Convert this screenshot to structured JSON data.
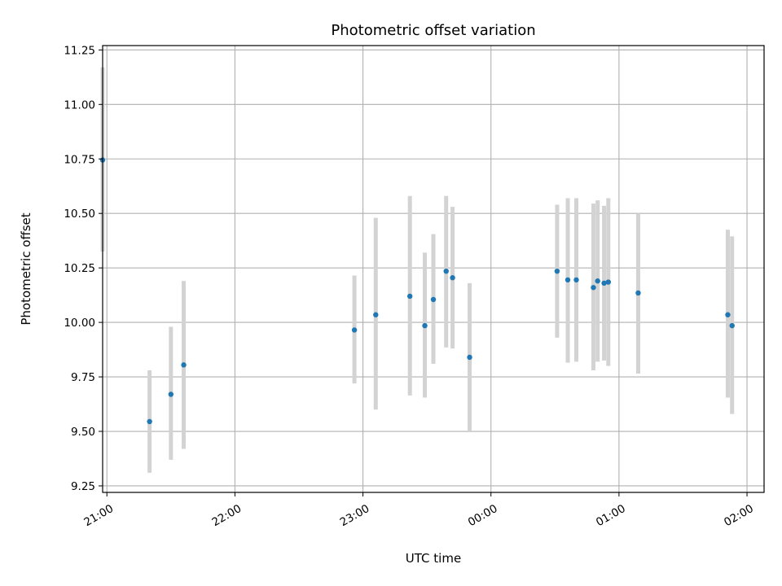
{
  "chart_data": {
    "type": "scatter",
    "title": "Photometric offset variation",
    "xlabel": "UTC time",
    "ylabel": "Photometric offset",
    "x_tick_labels": [
      "21:00",
      "22:00",
      "23:00",
      "00:00",
      "01:00",
      "02:00"
    ],
    "y_tick_labels": [
      "9.25",
      "9.50",
      "9.75",
      "10.00",
      "10.25",
      "10.50",
      "10.75",
      "11.00",
      "11.25"
    ],
    "xlim": [
      "20:58",
      "02:08"
    ],
    "ylim": [
      9.22,
      11.27
    ],
    "grid": true,
    "marker_color": "#1f77b4",
    "errorbar_color": "#d3d3d3",
    "series": [
      {
        "x": [
          "20:58",
          "21:20",
          "21:30",
          "21:36",
          "22:56",
          "23:06",
          "23:22",
          "23:29",
          "23:33",
          "23:39",
          "23:42",
          "23:50",
          "00:31",
          "00:36",
          "00:40",
          "00:48",
          "00:50",
          "00:53",
          "00:55",
          "01:09",
          "01:51",
          "01:53"
        ],
        "y": [
          10.745,
          9.545,
          9.67,
          9.805,
          9.965,
          10.035,
          10.12,
          9.985,
          10.105,
          10.235,
          10.205,
          9.84,
          10.235,
          10.195,
          10.195,
          10.16,
          10.19,
          10.18,
          10.185,
          10.135,
          10.035,
          9.985
        ],
        "y_low": [
          10.325,
          9.31,
          9.37,
          9.42,
          9.72,
          9.6,
          9.665,
          9.655,
          9.81,
          9.885,
          9.88,
          9.5,
          9.93,
          9.815,
          9.82,
          9.78,
          9.82,
          9.825,
          9.8,
          9.765,
          9.655,
          9.58
        ],
        "y_high": [
          11.17,
          9.78,
          9.98,
          10.19,
          10.215,
          10.48,
          10.58,
          10.32,
          10.405,
          10.58,
          10.53,
          10.18,
          10.54,
          10.57,
          10.57,
          10.545,
          10.56,
          10.535,
          10.57,
          10.5,
          10.425,
          10.395
        ]
      }
    ]
  }
}
